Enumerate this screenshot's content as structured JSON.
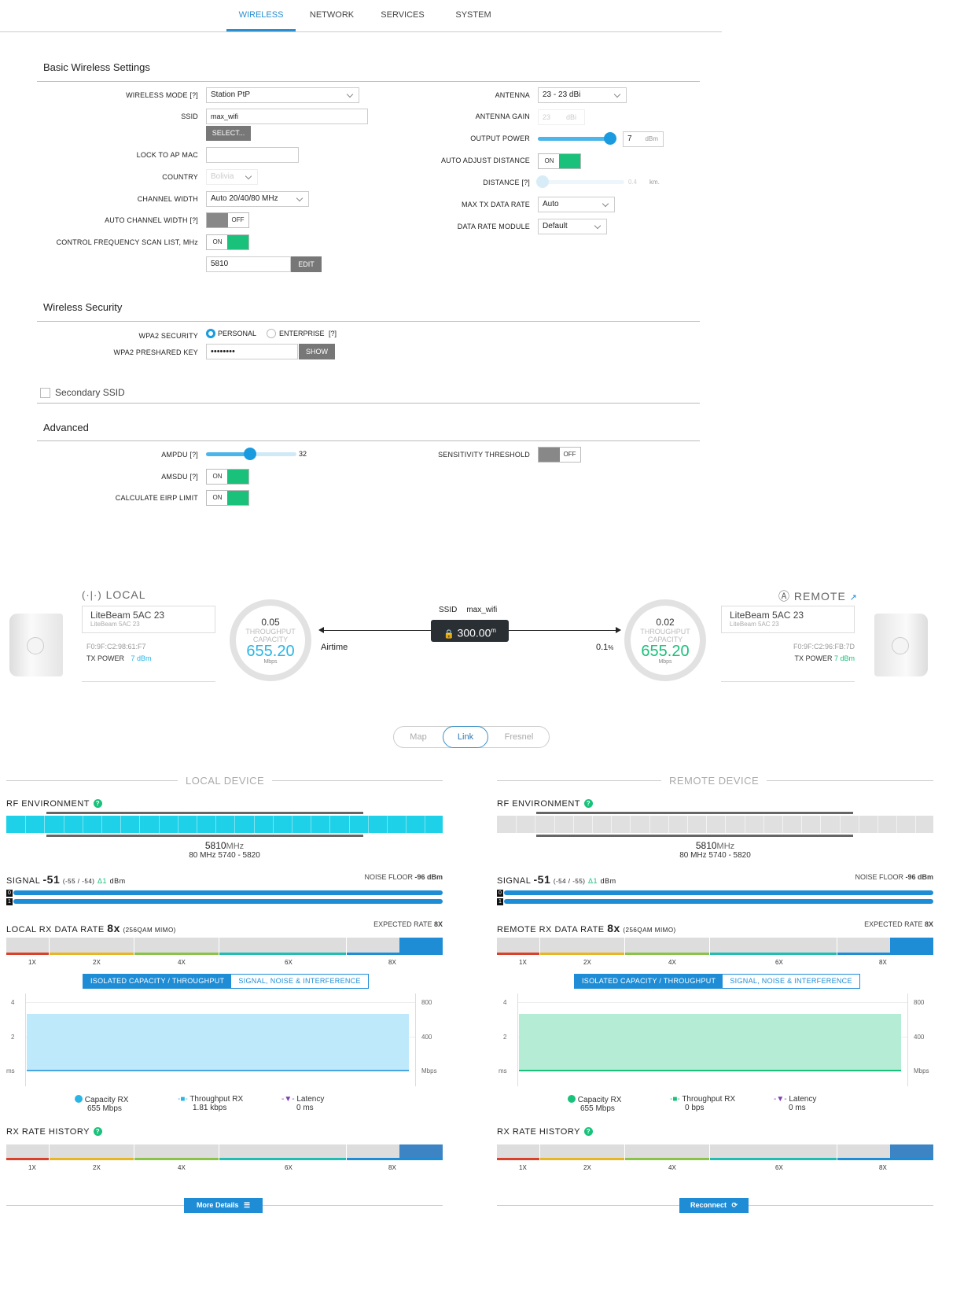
{
  "tabs": [
    "WIRELESS",
    "NETWORK",
    "SERVICES",
    "SYSTEM"
  ],
  "basic": {
    "title": "Basic Wireless Settings",
    "wireless_mode_label": "WIRELESS MODE [?]",
    "wireless_mode": "Station PtP",
    "ssid_label": "SSID",
    "ssid": "max_wifi",
    "select_btn": "SELECT...",
    "lock_label": "LOCK TO AP MAC",
    "country_label": "COUNTRY",
    "country": "Bolivia",
    "chwidth_label": "CHANNEL WIDTH",
    "chwidth": "Auto 20/40/80 MHz",
    "autochw_label": "AUTO CHANNEL WIDTH [?]",
    "autochw": "OFF",
    "cfsl_label": "CONTROL FREQUENCY SCAN LIST, MHz",
    "cfsl": "ON",
    "freq": "5810",
    "edit_btn": "EDIT",
    "antenna_label": "ANTENNA",
    "antenna": "23 - 23 dBi",
    "gain_label": "ANTENNA GAIN",
    "gain": "23",
    "gain_unit": "dBi",
    "power_label": "OUTPUT POWER",
    "power": "7",
    "power_unit": "dBm",
    "power_level": 0.92,
    "aad_label": "AUTO ADJUST DISTANCE",
    "aad": "ON",
    "distance_label": "DISTANCE [?]",
    "distance": "0.4",
    "distance_unit": "km.",
    "distance_level": 0.05,
    "maxtx_label": "MAX TX DATA RATE",
    "maxtx": "Auto",
    "drm_label": "DATA RATE MODULE",
    "drm": "Default"
  },
  "security": {
    "title": "Wireless Security",
    "wpa2_label": "WPA2 SECURITY",
    "personal": "PERSONAL",
    "enterprise": "ENTERPRISE",
    "enterprise_q": "[?]",
    "psk_label": "WPA2 PRESHARED KEY",
    "psk": "••••••••",
    "show_btn": "SHOW"
  },
  "secondary": {
    "label": "Secondary SSID"
  },
  "advanced": {
    "title": "Advanced",
    "ampdu_label": "AMPDU [?]",
    "ampdu": "32",
    "ampdu_level": 0.49,
    "amsdu_label": "AMSDU [?]",
    "amsdu": "ON",
    "eirp_label": "CALCULATE EIRP LIMIT",
    "eirp": "ON",
    "sens_label": "SENSITIVITY THRESHOLD",
    "sens": "OFF"
  },
  "link": {
    "local_title": "LOCAL",
    "remote_title": "REMOTE",
    "local_name": "LiteBeam 5AC 23",
    "local_sub": "LiteBeam 5AC 23",
    "local_mac": "F0:9F:C2:98:61:F7",
    "local_txp_label": "TX POWER",
    "local_txp": "7 dBm",
    "remote_name": "LiteBeam 5AC 23",
    "remote_sub": "LiteBeam 5AC 23",
    "remote_mac": "F0:9F:C2:96:FB:7D",
    "remote_txp_label": "TX POWER",
    "remote_txp": "7 dBm",
    "l_throughput": "0.05",
    "throughput_label": "THROUGHPUT",
    "capacity_label": "CAPACITY",
    "l_capacity": "655.20",
    "mbps": "Mbps",
    "r_throughput": "0.02",
    "r_capacity": "655.20",
    "ssid_label": "SSID",
    "ssid": "max_wifi",
    "distance": "300.00",
    "distance_unit": "m",
    "airtime_label": "Airtime",
    "airtime": "0.1",
    "airtime_unit": "%"
  },
  "viewtabs": [
    "Map",
    "Link",
    "Fresnel"
  ],
  "local": {
    "title": "LOCAL DEVICE",
    "rf": "RF ENVIRONMENT",
    "freq": "5810",
    "freq_unit": "MHz",
    "range": "80 MHz 5740 - 5820",
    "signal_label": "SIGNAL",
    "signal": "-51",
    "signal_detail": "(-55 / -54)",
    "delta": "Δ1",
    "signal_unit": "dBm",
    "noise_label": "NOISE FLOOR",
    "noise": "-96 dBm",
    "rate_label": "LOCAL RX DATA RATE",
    "rate": "8x",
    "rate_detail": "(256QAM MIMO)",
    "exp_label": "EXPECTED RATE",
    "exp": "8X",
    "ticks": [
      "1X",
      "2X",
      "4X",
      "6X",
      "8X"
    ],
    "tab1": "ISOLATED CAPACITY / THROUGHPUT",
    "tab2": "SIGNAL, NOISE & INTERFERENCE",
    "yl": [
      "4",
      "2",
      "ms"
    ],
    "yr": [
      "800",
      "400",
      "Mbps"
    ],
    "leg": [
      {
        "name": "Capacity RX",
        "value": "655 Mbps"
      },
      {
        "name": "Throughput RX",
        "value": "1.81 kbps"
      },
      {
        "name": "Latency",
        "value": "0 ms"
      }
    ],
    "history": "RX RATE HISTORY",
    "button": "More Details"
  },
  "remote": {
    "title": "REMOTE DEVICE",
    "rf": "RF ENVIRONMENT",
    "freq": "5810",
    "freq_unit": "MHz",
    "range": "80 MHz 5740 - 5820",
    "signal_label": "SIGNAL",
    "signal": "-51",
    "signal_detail": "(-54 / -55)",
    "delta": "Δ1",
    "signal_unit": "dBm",
    "noise_label": "NOISE FLOOR",
    "noise": "-96 dBm",
    "rate_label": "REMOTE RX DATA RATE",
    "rate": "8x",
    "rate_detail": "(256QAM MIMO)",
    "exp_label": "EXPECTED RATE",
    "exp": "8X",
    "ticks": [
      "1X",
      "2X",
      "4X",
      "6X",
      "8X"
    ],
    "tab1": "ISOLATED CAPACITY / THROUGHPUT",
    "tab2": "SIGNAL, NOISE & INTERFERENCE",
    "yl": [
      "4",
      "2",
      "ms"
    ],
    "yr": [
      "800",
      "400",
      "Mbps"
    ],
    "leg": [
      {
        "name": "Capacity RX",
        "value": "655 Mbps"
      },
      {
        "name": "Throughput RX",
        "value": "0 bps"
      },
      {
        "name": "Latency",
        "value": "0 ms"
      }
    ],
    "history": "RX RATE HISTORY",
    "button": "Reconnect"
  },
  "colors": {
    "accent": "#1f8dd6",
    "green": "#19c17a",
    "local_area": "#bde9fb",
    "remote_area": "#b4ecd5"
  }
}
